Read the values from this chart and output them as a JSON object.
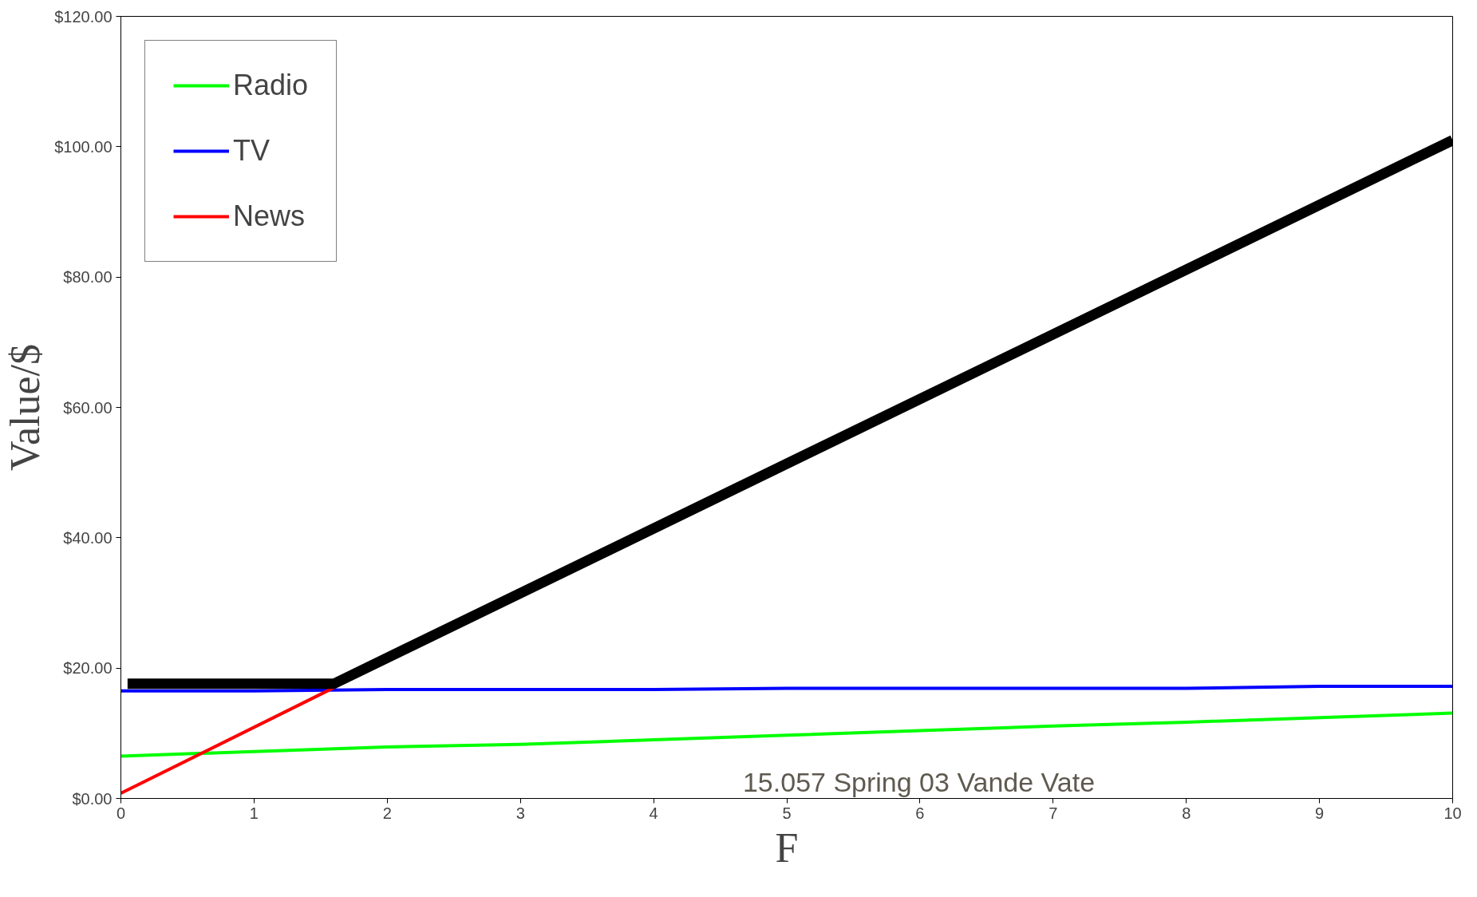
{
  "chart_data": {
    "type": "line",
    "xlabel": "F",
    "ylabel": "Value/$",
    "annotations": [
      "15.057 Spring 03 Vande Vate"
    ],
    "x": [
      0,
      1,
      2,
      3,
      4,
      5,
      6,
      7,
      8,
      9,
      10
    ],
    "xlim": [
      0,
      10
    ],
    "xticks": [
      0,
      1,
      2,
      3,
      4,
      5,
      6,
      7,
      8,
      9,
      10
    ],
    "ylim": [
      0,
      120
    ],
    "yticks": [
      {
        "value": 0,
        "label": "$0.00"
      },
      {
        "value": 20,
        "label": "$20.00"
      },
      {
        "value": 40,
        "label": "$40.00"
      },
      {
        "value": 60,
        "label": "$60.00"
      },
      {
        "value": 80,
        "label": "$80.00"
      },
      {
        "value": 100,
        "label": "$100.00"
      },
      {
        "value": 120,
        "label": "$120.00"
      }
    ],
    "series": [
      {
        "name": "Radio",
        "color": "#00ff00",
        "values": [
          6.5,
          7.2,
          7.9,
          8.3,
          9.0,
          9.7,
          10.4,
          11.1,
          11.7,
          12.4,
          13.1
        ]
      },
      {
        "name": "TV",
        "color": "#0000ff",
        "values": [
          16.5,
          16.5,
          16.7,
          16.7,
          16.7,
          16.9,
          16.9,
          16.9,
          16.9,
          17.2,
          17.2
        ]
      },
      {
        "name": "News",
        "color": "#ff0000",
        "x": [
          0,
          1.6
        ],
        "values": [
          0.8,
          17
        ]
      },
      {
        "color": "#000000",
        "x": [
          0.05,
          1.6,
          10
        ],
        "values": [
          17.6,
          17.6,
          101
        ]
      }
    ],
    "grid": false,
    "legend": "top left",
    "marker": "none",
    "line_style": "solid"
  }
}
